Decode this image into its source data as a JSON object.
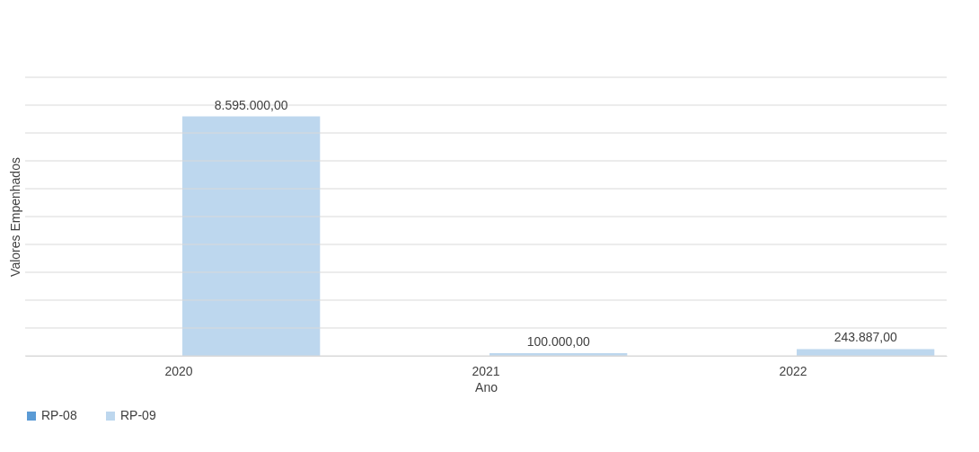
{
  "chart_data": {
    "type": "bar",
    "xlabel": "Ano",
    "ylabel": "Valores Empenhados",
    "categories": [
      "2020",
      "2021",
      "2022"
    ],
    "series": [
      {
        "name": "RP-08",
        "color": "#5b9bd5",
        "values": [
          null,
          null,
          null
        ]
      },
      {
        "name": "RP-09",
        "color": "#bdd7ee",
        "values": [
          8595000,
          100000,
          243887
        ],
        "value_labels": [
          "8.595.000,00",
          "100.000,00",
          "243.887,00"
        ]
      }
    ],
    "ylim": [
      0,
      10000000
    ],
    "yticks": [
      {
        "value": 0,
        "label": null
      },
      {
        "value": 1000000,
        "label": null
      },
      {
        "value": 2000000,
        "label": null
      },
      {
        "value": 3000000,
        "label": null
      },
      {
        "value": 4000000,
        "label": null
      },
      {
        "value": 5000000,
        "label": null
      },
      {
        "value": 6000000,
        "label": null
      },
      {
        "value": 7000000,
        "label": null
      },
      {
        "value": 8000000,
        "label": null
      },
      {
        "value": 9000000,
        "label": null
      },
      {
        "value": 10000000,
        "label": null
      }
    ],
    "tick_labels": "x",
    "grid": "y",
    "legend": "bottom"
  }
}
